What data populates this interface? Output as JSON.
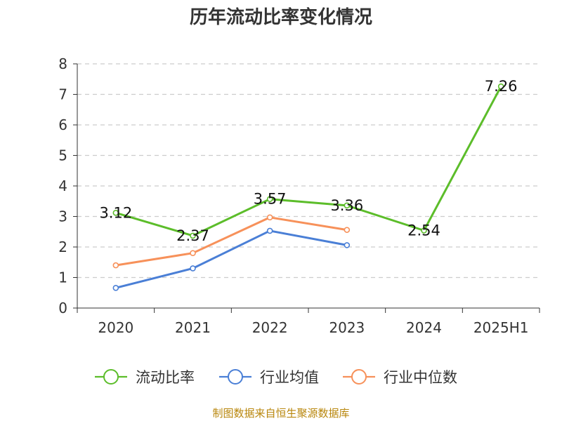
{
  "chart_data": {
    "type": "line",
    "title": "历年流动比率变化情况",
    "categories": [
      "2020",
      "2021",
      "2022",
      "2023",
      "2024",
      "2025H1"
    ],
    "ylim": [
      0,
      8
    ],
    "yticks": [
      0,
      1,
      2,
      3,
      4,
      5,
      6,
      7,
      8
    ],
    "grid": true,
    "legend_position": "bottom",
    "series": [
      {
        "name": "流动比率",
        "color": "#5cbd2a",
        "values": [
          3.12,
          2.37,
          3.57,
          3.36,
          2.54,
          7.26
        ],
        "labels": [
          "3.12",
          "2.37",
          "3.57",
          "3.36",
          "2.54",
          "7.26"
        ]
      },
      {
        "name": "行业均值",
        "color": "#4a7fd6",
        "values": [
          0.66,
          1.3,
          2.53,
          2.06,
          null,
          null
        ]
      },
      {
        "name": "行业中位数",
        "color": "#f7915a",
        "values": [
          1.4,
          1.8,
          2.97,
          2.56,
          null,
          null
        ]
      }
    ]
  },
  "source_note": "制图数据来自恒生聚源数据库"
}
